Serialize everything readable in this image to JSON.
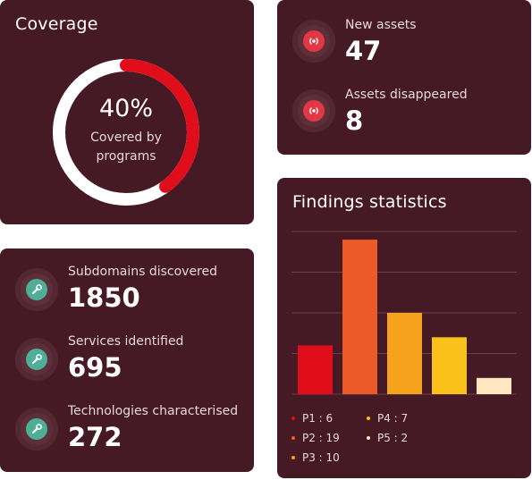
{
  "coverage": {
    "title": "Coverage",
    "percent_label": "40%",
    "percent": 0.4,
    "caption_line1": "Covered by",
    "caption_line2": "programs",
    "colors": {
      "track": "#ffffff",
      "fill": "#e00d1a"
    }
  },
  "assets": {
    "items": [
      {
        "label": "New assets",
        "value": "47",
        "icon": "broadcast-icon"
      },
      {
        "label": "Assets disappeared",
        "value": "8",
        "icon": "broadcast-icon"
      }
    ]
  },
  "discovery": {
    "items": [
      {
        "label": "Subdomains discovered",
        "value": "1850",
        "icon": "wrench-icon"
      },
      {
        "label": "Services identified",
        "value": "695",
        "icon": "wrench-icon"
      },
      {
        "label": "Technologies characterised",
        "value": "272",
        "icon": "wrench-icon"
      }
    ]
  },
  "findings": {
    "title": "Findings statistics",
    "legend": [
      {
        "text": "P1 : 6",
        "color": "#e00d1a"
      },
      {
        "text": "P2 : 19",
        "color": "#ec5a29"
      },
      {
        "text": "P3 : 10",
        "color": "#f5a21c"
      },
      {
        "text": "P4 : 7",
        "color": "#fbc11b"
      },
      {
        "text": "P5 : 2",
        "color": "#fde6c0"
      }
    ]
  },
  "chart_data": {
    "type": "bar",
    "categories": [
      "P1",
      "P2",
      "P3",
      "P4",
      "P5"
    ],
    "values": [
      6,
      19,
      10,
      7,
      2
    ],
    "colors": [
      "#e00d1a",
      "#ec5a29",
      "#f5a21c",
      "#fbc11b",
      "#fde6c0"
    ],
    "title": "Findings statistics",
    "ylim": [
      0,
      20
    ],
    "grid": true,
    "legend_position": "bottom"
  }
}
